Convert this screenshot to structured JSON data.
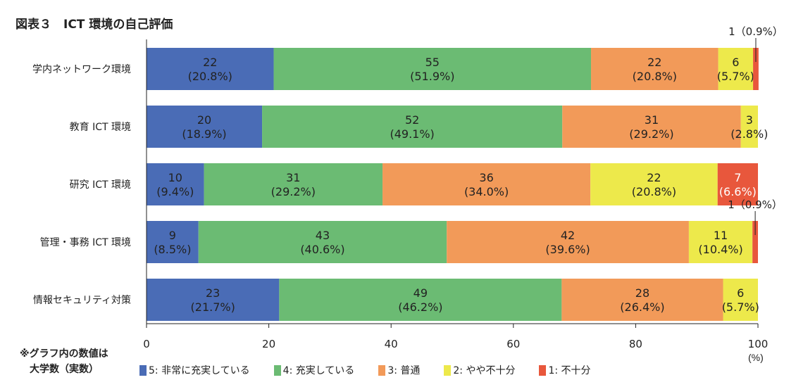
{
  "title": "図表３　ICT 環境の自己評価",
  "note": [
    "※グラフ内の数値は",
    "大学数（実数）"
  ],
  "chart_data": {
    "type": "bar",
    "orientation": "horizontal",
    "stacked": true,
    "title": "図表３　ICT 環境の自己評価",
    "xlabel": "(%)",
    "xlim": [
      0,
      100
    ],
    "xticks": [
      "0",
      "20",
      "40",
      "60",
      "80",
      "100"
    ],
    "categories": [
      "学内ネットワーク環境",
      "教育 ICT 環境",
      "研究 ICT 環境",
      "管理・事務 ICT 環境",
      "情報セキュリティ対策"
    ],
    "legend_position": "bottom",
    "series": [
      {
        "name": "5: 非常に充実している",
        "color": "#4a6cb6",
        "counts": [
          22,
          20,
          10,
          9,
          23
        ],
        "values": [
          20.8,
          18.9,
          9.4,
          8.5,
          21.7
        ]
      },
      {
        "name": "4: 充実している",
        "color": "#6bbb73",
        "counts": [
          55,
          52,
          31,
          43,
          49
        ],
        "values": [
          51.9,
          49.1,
          29.2,
          40.6,
          46.2
        ]
      },
      {
        "name": "3: 普通",
        "color": "#f29a59",
        "counts": [
          22,
          31,
          36,
          42,
          28
        ],
        "values": [
          20.8,
          29.2,
          34.0,
          39.6,
          26.4
        ]
      },
      {
        "name": "2: やや不十分",
        "color": "#ede94b",
        "counts": [
          6,
          3,
          22,
          11,
          6
        ],
        "values": [
          5.7,
          2.8,
          20.8,
          10.4,
          5.7
        ]
      },
      {
        "name": "1: 不十分",
        "color": "#e8573c",
        "counts": [
          1,
          0,
          7,
          1,
          0
        ],
        "values": [
          0.9,
          0,
          6.6,
          0.9,
          0
        ]
      }
    ]
  }
}
